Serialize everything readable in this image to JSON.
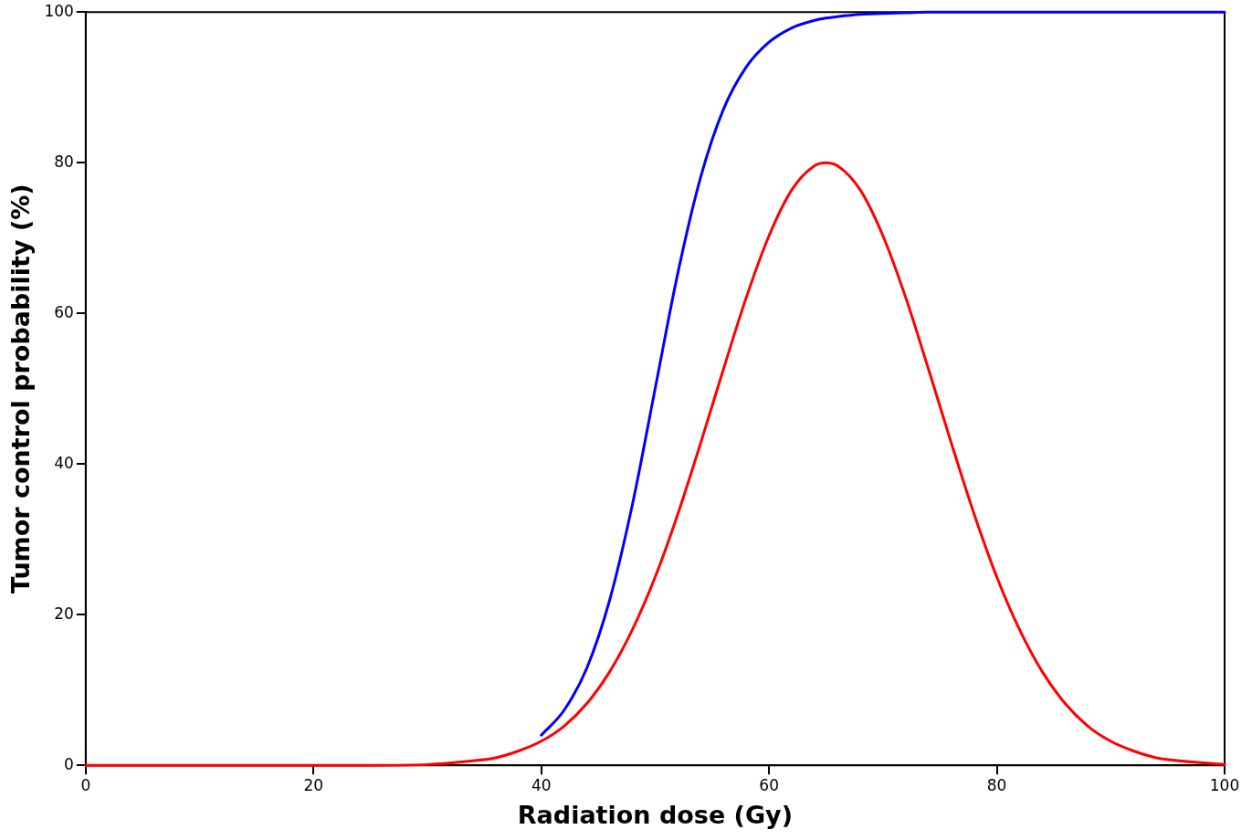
{
  "chart_data": {
    "type": "line",
    "xlabel": "Radiation dose (Gy)",
    "ylabel": "Tumor control probability (%)",
    "series": [
      {
        "color": "#0000ff",
        "x": [
          40,
          42,
          44,
          46,
          48,
          50,
          52,
          54,
          56,
          58,
          60,
          62,
          64,
          65,
          66,
          68,
          70,
          72,
          74,
          76,
          78,
          80,
          82,
          84,
          86,
          88,
          90,
          92,
          94,
          96,
          100
        ],
        "values": [
          4,
          7.3,
          12.9,
          21.9,
          34.6,
          50,
          65.4,
          78.1,
          87.1,
          92.7,
          96,
          97.9,
          98.9,
          99.2,
          99.4,
          99.7,
          99.8,
          99.9,
          100,
          100,
          100,
          100,
          100,
          100,
          100,
          100,
          100,
          100,
          100,
          100,
          100
        ]
      },
      {
        "color": "#ff0000",
        "x": [
          0,
          20,
          25,
          30,
          34,
          36,
          38,
          40,
          42,
          44,
          46,
          48,
          50,
          52,
          54,
          56,
          58,
          60,
          62,
          64,
          65,
          66,
          68,
          70,
          72,
          74,
          76,
          78,
          80,
          82,
          84,
          86,
          88,
          90,
          92,
          94,
          96,
          100
        ],
        "values": [
          0,
          0,
          0,
          0.1,
          0.6,
          1,
          1.9,
          3.2,
          5.2,
          8.2,
          12.4,
          18,
          25,
          33.4,
          42.8,
          52.6,
          62.1,
          70.3,
          76.4,
          79.6,
          80,
          79.6,
          76.4,
          70.3,
          62.1,
          52.6,
          42.8,
          33.4,
          25,
          18,
          12.4,
          8.2,
          5.2,
          3.2,
          1.9,
          1,
          0.6,
          0.1
        ]
      }
    ],
    "xlim": [
      0,
      100
    ],
    "xticks": [
      0,
      20,
      40,
      60,
      80,
      100
    ],
    "ylim": [
      0,
      100
    ],
    "yticks": [
      0,
      20,
      40,
      60,
      80,
      100
    ],
    "grid": false,
    "legend": false,
    "marker": "none",
    "line_style": "solid"
  }
}
